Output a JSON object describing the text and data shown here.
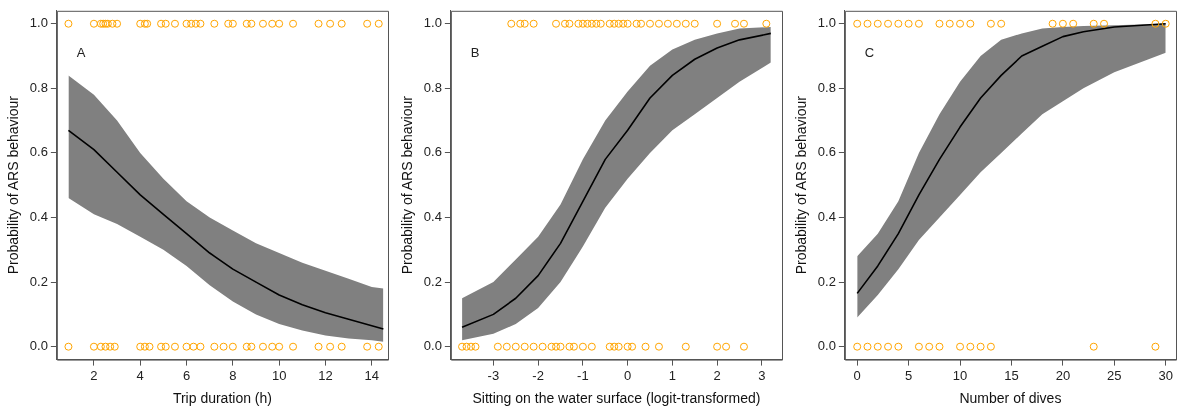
{
  "chart_data": [
    {
      "type": "line",
      "xlabel": "Trip duration (h)",
      "ylabel": "Probability of ARS behaviour",
      "annotations": [
        "A"
      ],
      "xlim": [
        0.4,
        14.7
      ],
      "ylim": [
        -0.04,
        1.04
      ],
      "xticks": [
        2,
        4,
        6,
        8,
        10,
        12,
        14
      ],
      "yticks": [
        {
          "value": 0,
          "label": "0.0"
        },
        {
          "value": 0.2,
          "label": "0.2"
        },
        {
          "value": 0.4,
          "label": "0.4"
        },
        {
          "value": 0.6,
          "label": "0.6"
        },
        {
          "value": 0.8,
          "label": "0.8"
        },
        {
          "value": 1,
          "label": "1.0"
        }
      ],
      "grid": false,
      "legend": false,
      "series": [
        {
          "type": "line",
          "color": "#000000",
          "line_style": "solid",
          "marker": "none",
          "x": [
            0.9,
            2,
            3,
            4,
            5,
            6,
            7,
            8,
            9,
            10,
            11,
            12,
            13,
            14,
            14.5
          ],
          "values": [
            0.67,
            0.61,
            0.54,
            0.47,
            0.41,
            0.35,
            0.29,
            0.24,
            0.2,
            0.16,
            0.13,
            0.105,
            0.085,
            0.065,
            0.055
          ],
          "lower": [
            0.46,
            0.41,
            0.38,
            0.34,
            0.3,
            0.25,
            0.19,
            0.14,
            0.1,
            0.07,
            0.05,
            0.035,
            0.025,
            0.02,
            0.015
          ],
          "upper": [
            0.84,
            0.78,
            0.7,
            0.6,
            0.52,
            0.45,
            0.4,
            0.36,
            0.32,
            0.29,
            0.26,
            0.235,
            0.21,
            0.185,
            0.18
          ]
        },
        {
          "type": "scatter",
          "color": "#ffa500",
          "marker": "circle",
          "x": [
            0.9,
            2,
            2.3,
            2.4,
            2.5,
            2.6,
            2.8,
            3,
            4,
            4.2,
            4.3,
            4.9,
            5.1,
            5.5,
            6,
            6.2,
            6.4,
            6.6,
            7.2,
            7.8,
            8,
            8.6,
            8.8,
            9.3,
            9.7,
            10,
            10.6,
            11.7,
            12.2,
            12.7,
            13.8,
            14.3,
            0.9,
            2,
            2.3,
            2.5,
            2.7,
            2.9,
            4,
            4.2,
            4.4,
            4.9,
            5.1,
            5.5,
            6,
            6.3,
            6.6,
            7.2,
            7.6,
            8,
            8.6,
            8.8,
            9.3,
            9.7,
            10,
            10.6,
            11.7,
            12.2,
            12.7,
            13.8,
            14.3
          ],
          "values": [
            1,
            1,
            1,
            1,
            1,
            1,
            1,
            1,
            1,
            1,
            1,
            1,
            1,
            1,
            1,
            1,
            1,
            1,
            1,
            1,
            1,
            1,
            1,
            1,
            1,
            1,
            1,
            1,
            1,
            1,
            1,
            1,
            0,
            0,
            0,
            0,
            0,
            0,
            0,
            0,
            0,
            0,
            0,
            0,
            0,
            0,
            0,
            0,
            0,
            0,
            0,
            0,
            0,
            0,
            0,
            0,
            0,
            0,
            0,
            0,
            0
          ]
        }
      ]
    },
    {
      "type": "line",
      "xlabel": "Sitting on the water surface (logit-transformed)",
      "ylabel": "Probability of ARS behaviour",
      "annotations": [
        "B"
      ],
      "xlim": [
        -3.95,
        3.45
      ],
      "ylim": [
        -0.04,
        1.04
      ],
      "xticks": [
        -3,
        -2,
        -1,
        0,
        1,
        2,
        3
      ],
      "yticks": [
        {
          "value": 0,
          "label": "0.0"
        },
        {
          "value": 0.2,
          "label": "0.2"
        },
        {
          "value": 0.4,
          "label": "0.4"
        },
        {
          "value": 0.6,
          "label": "0.6"
        },
        {
          "value": 0.8,
          "label": "0.8"
        },
        {
          "value": 1,
          "label": "1.0"
        }
      ],
      "grid": false,
      "legend": false,
      "series": [
        {
          "type": "line",
          "color": "#000000",
          "line_style": "solid",
          "marker": "none",
          "x": [
            -3.7,
            -3,
            -2.5,
            -2,
            -1.5,
            -1,
            -0.5,
            0,
            0.5,
            1,
            1.5,
            2,
            2.5,
            3.2
          ],
          "values": [
            0.06,
            0.1,
            0.15,
            0.22,
            0.32,
            0.45,
            0.58,
            0.67,
            0.77,
            0.84,
            0.89,
            0.925,
            0.95,
            0.97
          ],
          "lower": [
            0.02,
            0.04,
            0.07,
            0.12,
            0.2,
            0.31,
            0.43,
            0.52,
            0.6,
            0.67,
            0.72,
            0.77,
            0.82,
            0.88
          ],
          "upper": [
            0.15,
            0.2,
            0.27,
            0.34,
            0.44,
            0.58,
            0.7,
            0.79,
            0.87,
            0.92,
            0.95,
            0.97,
            0.985,
            0.99
          ]
        },
        {
          "type": "scatter",
          "color": "#ffa500",
          "marker": "circle",
          "x": [
            -2.6,
            -2.4,
            -2.3,
            -2.1,
            -1.6,
            -1.4,
            -1.3,
            -1.1,
            -1,
            -0.9,
            -0.8,
            -0.7,
            -0.6,
            -0.4,
            -0.3,
            -0.2,
            -0.1,
            0,
            0.2,
            0.3,
            0.5,
            0.7,
            0.9,
            1.1,
            1.3,
            1.5,
            2,
            2.4,
            2.6,
            3.1,
            -3.7,
            -3.6,
            -3.5,
            -3.4,
            -2.9,
            -2.7,
            -2.5,
            -2.3,
            -2.1,
            -1.9,
            -1.7,
            -1.6,
            -1.5,
            -1.3,
            -1.2,
            -1,
            -0.8,
            -0.4,
            -0.3,
            -0.2,
            0,
            0.1,
            0.4,
            0.7,
            1.3,
            2,
            2.2,
            2.6
          ],
          "values": [
            1,
            1,
            1,
            1,
            1,
            1,
            1,
            1,
            1,
            1,
            1,
            1,
            1,
            1,
            1,
            1,
            1,
            1,
            1,
            1,
            1,
            1,
            1,
            1,
            1,
            1,
            1,
            1,
            1,
            1,
            0,
            0,
            0,
            0,
            0,
            0,
            0,
            0,
            0,
            0,
            0,
            0,
            0,
            0,
            0,
            0,
            0,
            0,
            0,
            0,
            0,
            0,
            0,
            0,
            0,
            0,
            0,
            0
          ]
        }
      ]
    },
    {
      "type": "line",
      "xlabel": "Number of dives",
      "ylabel": "Probability of ARS behaviour",
      "annotations": [
        "C"
      ],
      "xlim": [
        -1.2,
        31
      ],
      "ylim": [
        -0.04,
        1.04
      ],
      "xticks": [
        0,
        5,
        10,
        15,
        20,
        25,
        30
      ],
      "yticks": [
        {
          "value": 0,
          "label": "0.0"
        },
        {
          "value": 0.2,
          "label": "0.2"
        },
        {
          "value": 0.4,
          "label": "0.4"
        },
        {
          "value": 0.6,
          "label": "0.6"
        },
        {
          "value": 0.8,
          "label": "0.8"
        },
        {
          "value": 1,
          "label": "1.0"
        }
      ],
      "grid": false,
      "legend": false,
      "series": [
        {
          "type": "line",
          "color": "#000000",
          "line_style": "solid",
          "marker": "none",
          "x": [
            0,
            2,
            4,
            6,
            8,
            10,
            12,
            14,
            16,
            18,
            20,
            22,
            25,
            30
          ],
          "values": [
            0.165,
            0.25,
            0.35,
            0.47,
            0.58,
            0.68,
            0.77,
            0.84,
            0.9,
            0.93,
            0.96,
            0.975,
            0.99,
            1
          ],
          "lower": [
            0.09,
            0.16,
            0.24,
            0.33,
            0.4,
            0.47,
            0.54,
            0.6,
            0.66,
            0.72,
            0.76,
            0.8,
            0.85,
            0.91
          ],
          "upper": [
            0.28,
            0.35,
            0.45,
            0.6,
            0.72,
            0.82,
            0.9,
            0.95,
            0.97,
            0.985,
            0.99,
            0.993,
            0.995,
            1
          ]
        },
        {
          "type": "scatter",
          "color": "#ffa500",
          "marker": "circle",
          "x": [
            0,
            1,
            2,
            3,
            4,
            5,
            6,
            8,
            9,
            10,
            11,
            13,
            14,
            19,
            20,
            21,
            23,
            24,
            29,
            30,
            0,
            1,
            2,
            3,
            4,
            6,
            7,
            8,
            10,
            11,
            12,
            13,
            23,
            29
          ],
          "values": [
            1,
            1,
            1,
            1,
            1,
            1,
            1,
            1,
            1,
            1,
            1,
            1,
            1,
            1,
            1,
            1,
            1,
            1,
            1,
            1,
            0,
            0,
            0,
            0,
            0,
            0,
            0,
            0,
            0,
            0,
            0,
            0,
            0,
            0
          ]
        }
      ]
    }
  ]
}
